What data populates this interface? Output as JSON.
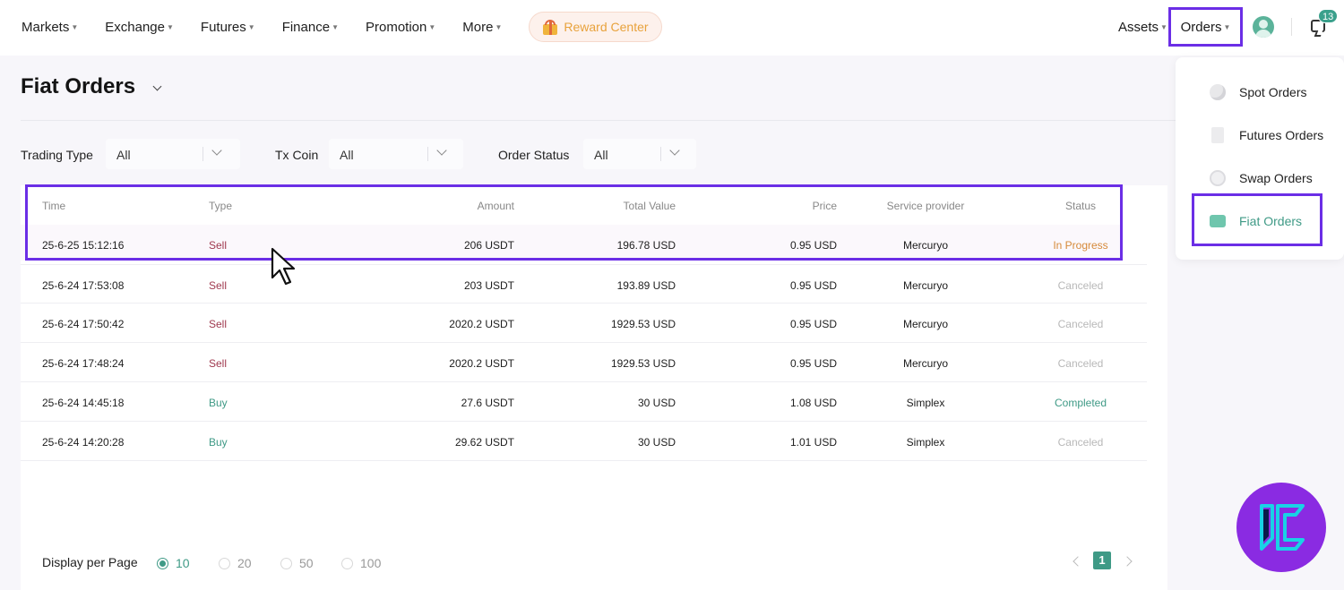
{
  "nav": {
    "items": [
      "Markets",
      "Exchange",
      "Futures",
      "Finance",
      "Promotion",
      "More"
    ],
    "reward_center": "Reward Center",
    "assets": "Assets",
    "orders": "Orders",
    "notification_count": "13"
  },
  "page": {
    "title": "Fiat Orders"
  },
  "filters": {
    "trading_type": {
      "label": "Trading Type",
      "value": "All"
    },
    "tx_coin": {
      "label": "Tx Coin",
      "value": "All"
    },
    "order_status": {
      "label": "Order Status",
      "value": "All"
    }
  },
  "table": {
    "headers": {
      "time": "Time",
      "type": "Type",
      "amount": "Amount",
      "total": "Total Value",
      "price": "Price",
      "provider": "Service provider",
      "status": "Status"
    },
    "rows": [
      {
        "time": "25-6-25 15:12:16",
        "type": "Sell",
        "amount": "206 USDT",
        "total": "196.78 USD",
        "price": "0.95 USD",
        "provider": "Mercuryo",
        "status": "In Progress"
      },
      {
        "time": "25-6-24 17:53:08",
        "type": "Sell",
        "amount": "203 USDT",
        "total": "193.89 USD",
        "price": "0.95 USD",
        "provider": "Mercuryo",
        "status": "Canceled"
      },
      {
        "time": "25-6-24 17:50:42",
        "type": "Sell",
        "amount": "2020.2 USDT",
        "total": "1929.53 USD",
        "price": "0.95 USD",
        "provider": "Mercuryo",
        "status": "Canceled"
      },
      {
        "time": "25-6-24 17:48:24",
        "type": "Sell",
        "amount": "2020.2 USDT",
        "total": "1929.53 USD",
        "price": "0.95 USD",
        "provider": "Mercuryo",
        "status": "Canceled"
      },
      {
        "time": "25-6-24 14:45:18",
        "type": "Buy",
        "amount": "27.6 USDT",
        "total": "30 USD",
        "price": "1.08 USD",
        "provider": "Simplex",
        "status": "Completed"
      },
      {
        "time": "25-6-24 14:20:28",
        "type": "Buy",
        "amount": "29.62 USDT",
        "total": "30 USD",
        "price": "1.01 USD",
        "provider": "Simplex",
        "status": "Canceled"
      }
    ]
  },
  "pagination": {
    "label": "Display per Page",
    "options": [
      "10",
      "20",
      "50",
      "100"
    ],
    "selected": "10",
    "current_page": "1"
  },
  "orders_menu": {
    "items": [
      "Spot Orders",
      "Futures Orders",
      "Swap Orders",
      "Fiat Orders"
    ],
    "active": "Fiat Orders"
  },
  "colors": {
    "accent": "#3f9a86",
    "highlight": "#6b2ee6",
    "sell": "#a0394f",
    "in_progress": "#d68a3a",
    "logo": "#8a2be2"
  }
}
